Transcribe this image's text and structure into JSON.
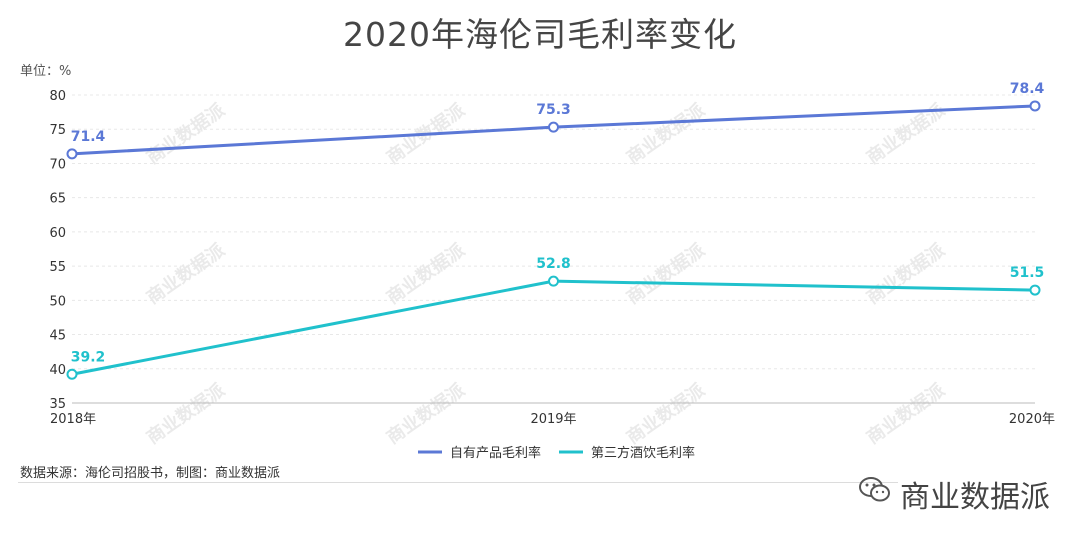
{
  "title": "2020年海伦司毛利率变化",
  "unit_label": "单位：%",
  "source": "数据来源：海伦司招股书，制图：商业数据派",
  "brand": "商业数据派",
  "watermark": "商业数据派",
  "colors": {
    "blue": "#5B78D6",
    "cyan": "#20C1CC"
  },
  "chart_data": {
    "type": "line",
    "x": [
      "2018年",
      "2019年",
      "2020年"
    ],
    "ylim": [
      35,
      80
    ],
    "yticks": [
      "35",
      "40",
      "45",
      "50",
      "55",
      "60",
      "65",
      "70",
      "75",
      "80"
    ],
    "grid": true,
    "legend_position": "bottom",
    "series": [
      {
        "name": "自有产品毛利率",
        "values": [
          71.4,
          75.3,
          78.4
        ],
        "labels": [
          "71.4",
          "75.3",
          "78.4"
        ],
        "color": "#5B78D6"
      },
      {
        "name": "第三方酒饮毛利率",
        "values": [
          39.2,
          52.8,
          51.5
        ],
        "labels": [
          "39.2",
          "52.8",
          "51.5"
        ],
        "color": "#20C1CC"
      }
    ]
  }
}
